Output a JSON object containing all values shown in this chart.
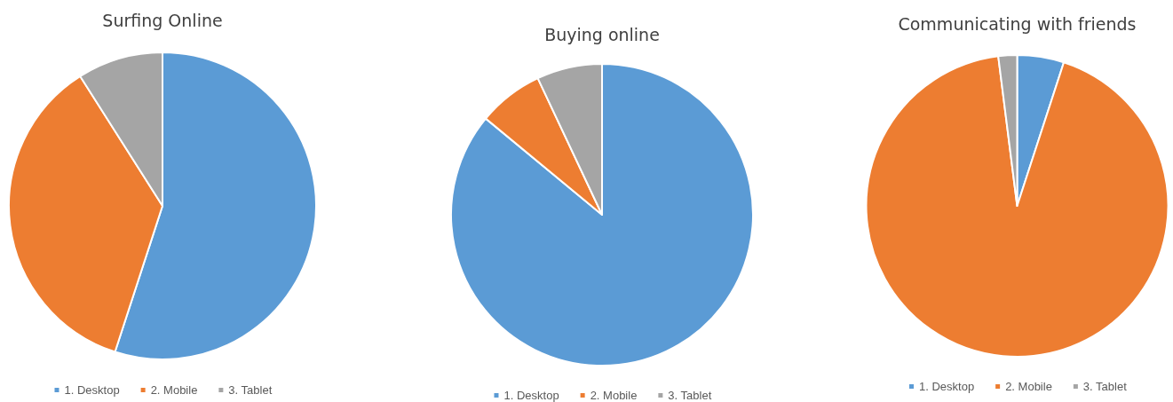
{
  "chart_data": [
    {
      "type": "pie",
      "title": "Surfing Online",
      "categories": [
        "1. Desktop",
        "2. Mobile",
        "3. Tablet"
      ],
      "values": [
        55,
        36,
        9
      ],
      "colors": [
        "#5b9bd5",
        "#ed7d31",
        "#a5a5a5"
      ],
      "legend": "bottom"
    },
    {
      "type": "pie",
      "title": "Buying online",
      "categories": [
        "1. Desktop",
        "2. Mobile",
        "3. Tablet"
      ],
      "values": [
        86,
        7,
        7
      ],
      "colors": [
        "#5b9bd5",
        "#ed7d31",
        "#a5a5a5"
      ],
      "legend": "bottom"
    },
    {
      "type": "pie",
      "title": "Communicating with friends",
      "categories": [
        "1. Desktop",
        "2. Mobile",
        "3. Tablet"
      ],
      "values": [
        5,
        93,
        2
      ],
      "colors": [
        "#5b9bd5",
        "#ed7d31",
        "#a5a5a5"
      ],
      "legend": "bottom"
    }
  ]
}
